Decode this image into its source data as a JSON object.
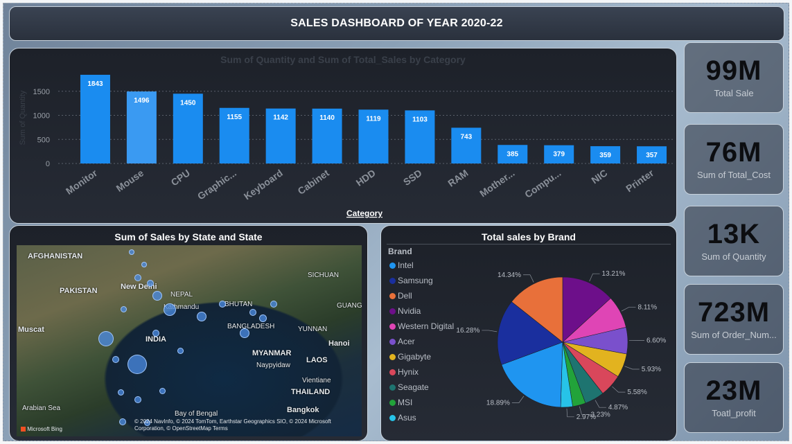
{
  "header": {
    "title": "SALES DASHBOARD OF YEAR 2020-22"
  },
  "kpis": [
    {
      "value": "99M",
      "label": "Total Sale"
    },
    {
      "value": "76M",
      "label": "Sum of Total_Cost"
    },
    {
      "value": "13K",
      "label": "Sum of Quantity"
    },
    {
      "value": "723M",
      "label": "Sum of Order_Num..."
    },
    {
      "value": "23M",
      "label": "Toatl_profit"
    }
  ],
  "map_panel": {
    "title": "Sum of Sales by State and State",
    "labels": [
      "AFGHANISTAN",
      "PAKISTAN",
      "New Delhi",
      "NEPAL",
      "Kathmandu",
      "BHUTAN",
      "BANGLADESH",
      "INDIA",
      "MYANMAR",
      "Naypyidaw",
      "LAOS",
      "Hanoi",
      "Vientiane",
      "THAILAND",
      "Bangkok",
      "Muscat",
      "Arabian Sea",
      "Bay of Bengal",
      "SICHUAN",
      "YUNNAN",
      "GUANGXI"
    ],
    "logo": "Microsoft Bing",
    "attribution": "© 2024 NavInfo, © 2024 TomTom, Earthstar Geographics SIO, © 2024 Microsoft Corporation, © OpenStreetMap  Terms"
  },
  "chart_data": [
    {
      "type": "bar",
      "title": "Sum of Quantity and Sum of Total_Sales by Category",
      "xlabel": "Category",
      "ylabel": "Sum of Quantity",
      "categories": [
        "Monitor",
        "Mouse",
        "CPU",
        "Graphic...",
        "Keyboard",
        "Cabinet",
        "HDD",
        "SSD",
        "RAM",
        "Mother...",
        "Compu...",
        "NIC",
        "Printer"
      ],
      "values": [
        1843,
        1496,
        1450,
        1155,
        1142,
        1140,
        1119,
        1103,
        743,
        385,
        379,
        359,
        357
      ],
      "yticks": [
        0,
        500,
        1000,
        1500
      ],
      "ylim": [
        0,
        1900
      ],
      "grid": true,
      "colors": {
        "bar": "#1a8cf0",
        "highlight": "#3a9af2"
      }
    },
    {
      "type": "pie",
      "title": "Total sales by Brand",
      "legend_title": "Brand",
      "legend_position": "left",
      "slices": [
        {
          "name": "Intel",
          "value": 18.89,
          "label": "18.89%",
          "color": "#1f95f0"
        },
        {
          "name": "Samsung",
          "value": 16.28,
          "label": "16.28%",
          "color": "#1a2f9e"
        },
        {
          "name": "Dell",
          "value": 14.34,
          "label": "14.34%",
          "color": "#e8703a"
        },
        {
          "name": "Nvidia",
          "value": 13.21,
          "label": "13.21%",
          "color": "#6d0f8a"
        },
        {
          "name": "Western Digital",
          "value": 8.11,
          "label": "8.11%",
          "color": "#df45b5"
        },
        {
          "name": "Acer",
          "value": 6.6,
          "label": "6.60%",
          "color": "#7a50cc"
        },
        {
          "name": "Gigabyte",
          "value": 5.93,
          "label": "5.93%",
          "color": "#e2b31f"
        },
        {
          "name": "Hynix",
          "value": 5.58,
          "label": "5.58%",
          "color": "#d9475b"
        },
        {
          "name": "Seagate",
          "value": 4.87,
          "label": "4.87%",
          "color": "#1e7470"
        },
        {
          "name": "MSI",
          "value": 3.23,
          "label": "3.23%",
          "color": "#22a33a"
        },
        {
          "name": "Asus",
          "value": 2.97,
          "label": "2.97%",
          "color": "#27c3e8"
        }
      ]
    }
  ]
}
